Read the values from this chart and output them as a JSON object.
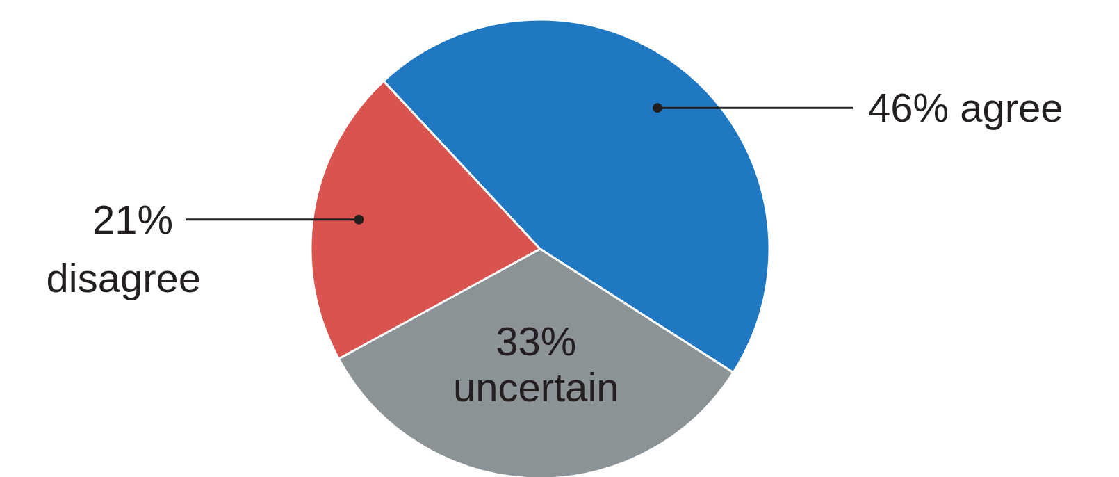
{
  "chart_data": {
    "type": "pie",
    "categories": [
      "agree",
      "uncertain",
      "disagree"
    ],
    "values": [
      46,
      33,
      21
    ],
    "value_labels": [
      "46%",
      "33%",
      "21%"
    ],
    "colors": [
      "#1f78c1",
      "#8c9396",
      "#d9534f"
    ]
  }
}
